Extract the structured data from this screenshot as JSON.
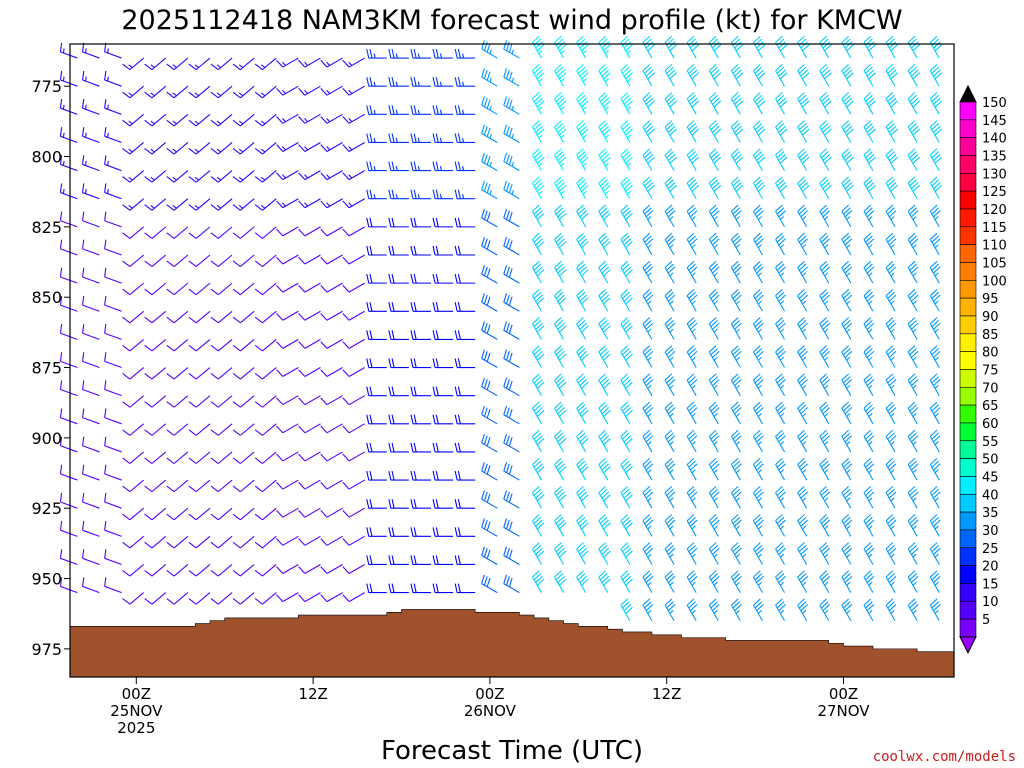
{
  "chart_data": {
    "type": "wind-barb-profile",
    "title": "2025112418 NAM3KM forecast wind profile (kt) for KMCW",
    "xlabel": "Forecast Time (UTC)",
    "ylabel": "",
    "credit": "coolwx.com/models",
    "y_axis": {
      "ylim": [
        985,
        760
      ],
      "reversed": true,
      "ticks": [
        775,
        800,
        825,
        850,
        875,
        900,
        925,
        950,
        975
      ]
    },
    "x_axis": {
      "xlim_hours": [
        -4.5,
        55.5
      ],
      "ticks": [
        {
          "hour": 0,
          "lines": [
            "00Z",
            "25NOV",
            "2025"
          ]
        },
        {
          "hour": 12,
          "lines": [
            "12Z"
          ]
        },
        {
          "hour": 24,
          "lines": [
            "00Z",
            "26NOV"
          ]
        },
        {
          "hour": 36,
          "lines": [
            "12Z"
          ]
        },
        {
          "hour": 48,
          "lines": [
            "00Z",
            "27NOV"
          ]
        }
      ]
    },
    "levels_hpa": [
      765,
      775,
      785,
      795,
      805,
      815,
      825,
      835,
      845,
      855,
      865,
      875,
      885,
      895,
      905,
      915,
      925,
      935,
      945,
      955,
      965,
      975
    ],
    "wind_summary": [
      {
        "from_hour": -4,
        "to_hour": 0,
        "direction_deg": 290,
        "speed_kt": 12
      },
      {
        "from_hour": 0,
        "to_hour": 10,
        "direction_deg": 230,
        "speed_kt": 11
      },
      {
        "from_hour": 10,
        "to_hour": 16,
        "direction_deg": 240,
        "speed_kt": 12
      },
      {
        "from_hour": 16,
        "to_hour": 24,
        "direction_deg": 270,
        "speed_kt": 22
      },
      {
        "from_hour": 24,
        "to_hour": 27,
        "direction_deg": 300,
        "speed_kt": 30
      },
      {
        "from_hour": 27,
        "to_hour": 35,
        "direction_deg": 330,
        "speed_kt": 40
      },
      {
        "from_hour": 35,
        "to_hour": 55,
        "direction_deg": 330,
        "speed_kt": 35
      }
    ],
    "surface_pressure_hpa": [
      {
        "hour": -4.5,
        "p": 967
      },
      {
        "hour": 0,
        "p": 967
      },
      {
        "hour": 4,
        "p": 966
      },
      {
        "hour": 5,
        "p": 965
      },
      {
        "hour": 6,
        "p": 964
      },
      {
        "hour": 10,
        "p": 964
      },
      {
        "hour": 11,
        "p": 963
      },
      {
        "hour": 16,
        "p": 963
      },
      {
        "hour": 17,
        "p": 962
      },
      {
        "hour": 18,
        "p": 961
      },
      {
        "hour": 22,
        "p": 961
      },
      {
        "hour": 23,
        "p": 962
      },
      {
        "hour": 25,
        "p": 962
      },
      {
        "hour": 26,
        "p": 963
      },
      {
        "hour": 27,
        "p": 964
      },
      {
        "hour": 28,
        "p": 965
      },
      {
        "hour": 29,
        "p": 966
      },
      {
        "hour": 30,
        "p": 967
      },
      {
        "hour": 32,
        "p": 968
      },
      {
        "hour": 33,
        "p": 969
      },
      {
        "hour": 35,
        "p": 970
      },
      {
        "hour": 37,
        "p": 971
      },
      {
        "hour": 40,
        "p": 972
      },
      {
        "hour": 46,
        "p": 972
      },
      {
        "hour": 47,
        "p": 973
      },
      {
        "hour": 48,
        "p": 974
      },
      {
        "hour": 50,
        "p": 975
      },
      {
        "hour": 53,
        "p": 976
      },
      {
        "hour": 55.5,
        "p": 976
      }
    ],
    "colorbar": {
      "units": "kt",
      "labels": [
        150,
        145,
        140,
        135,
        130,
        125,
        120,
        115,
        110,
        105,
        100,
        95,
        90,
        85,
        80,
        75,
        70,
        65,
        60,
        55,
        50,
        45,
        40,
        35,
        30,
        25,
        20,
        15,
        10,
        5
      ],
      "colors": [
        "#ff00ff",
        "#ff00cc",
        "#ff0099",
        "#ff0066",
        "#ff0040",
        "#ff0000",
        "#ff1a00",
        "#ff3300",
        "#ff6600",
        "#ff8000",
        "#ff9900",
        "#ffb300",
        "#ffcc00",
        "#ffee00",
        "#ffff00",
        "#ccff00",
        "#99ff00",
        "#33ff00",
        "#00ff33",
        "#00ff99",
        "#00ffcc",
        "#00eeff",
        "#00ccff",
        "#0099ff",
        "#0066ff",
        "#0033ff",
        "#0000ff",
        "#3300ff",
        "#5500ff",
        "#7700ff"
      ]
    },
    "ground_color": "#a0522d"
  }
}
